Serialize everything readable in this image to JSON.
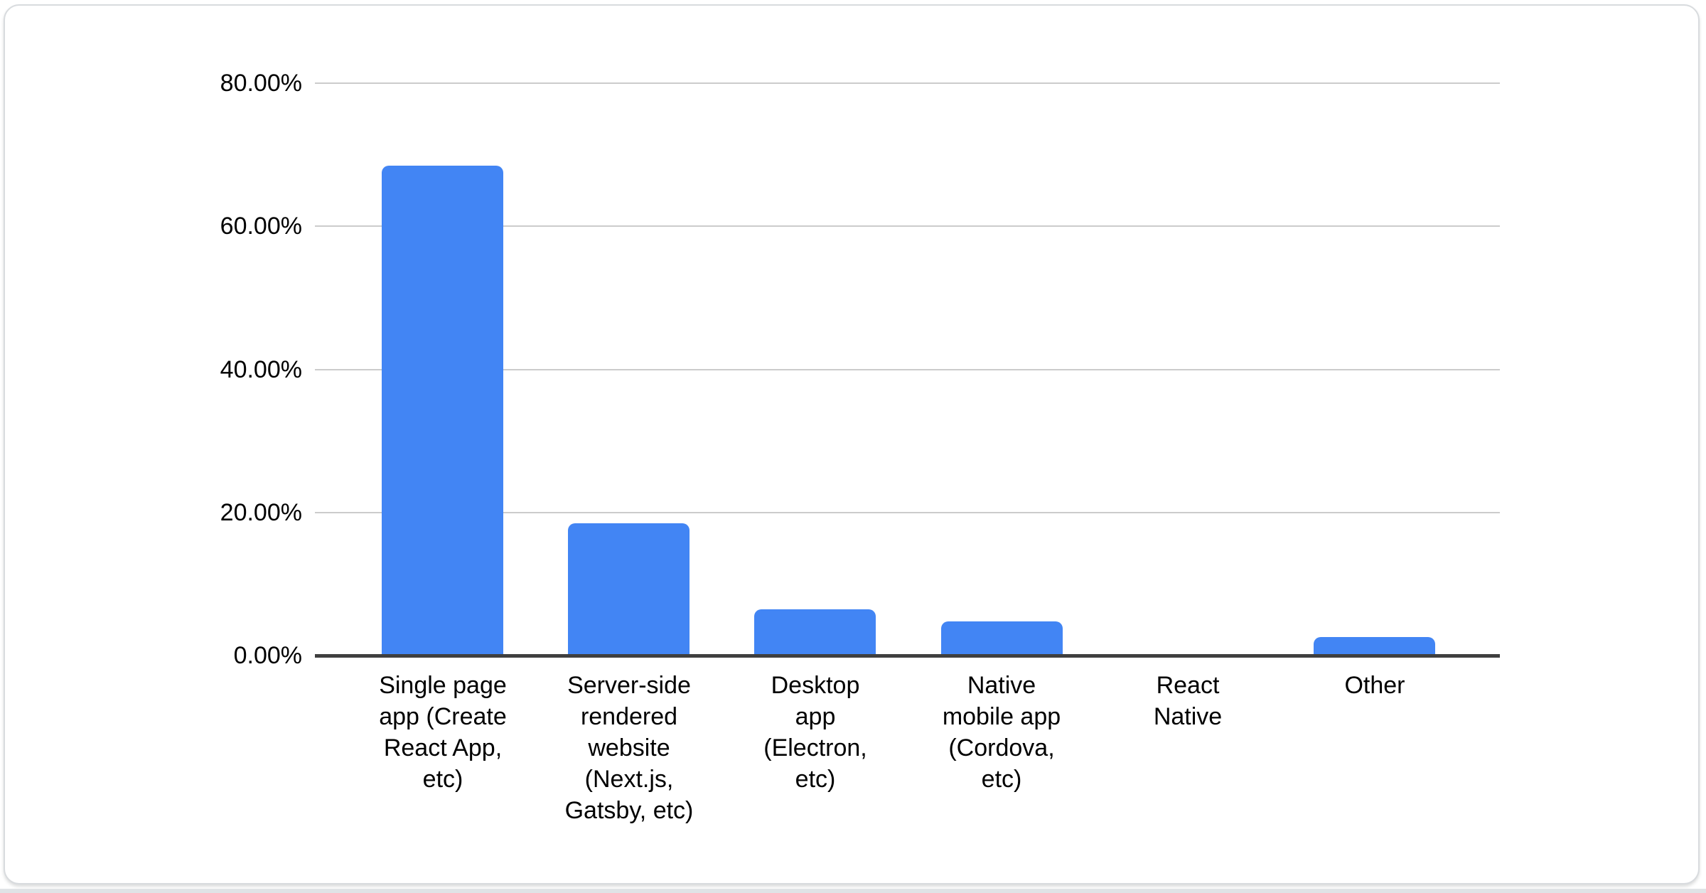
{
  "chart_data": {
    "type": "bar",
    "title": "",
    "categories": [
      "Single page app (Create React App, etc)",
      "Server-side rendered website (Next.js, Gatsby, etc)",
      "Desktop app (Electron, etc)",
      "Native mobile app (Cordova, etc)",
      "React Native",
      "Other"
    ],
    "category_slugs": [
      "single-page-app",
      "server-side-rendered-website",
      "desktop-app",
      "native-mobile-app",
      "react-native",
      "other"
    ],
    "values": [
      68.3,
      18.3,
      6.3,
      4.6,
      0,
      2.4
    ],
    "unit": "%",
    "ylim": [
      0,
      80
    ],
    "yticks": [
      {
        "value": 80,
        "label": "80.00%"
      },
      {
        "value": 60,
        "label": "60.00%"
      },
      {
        "value": 40,
        "label": "40.00%"
      },
      {
        "value": 20,
        "label": "20.00%"
      },
      {
        "value": 0,
        "label": "0.00%"
      }
    ],
    "grid": true,
    "legend": "none",
    "xlabel": "",
    "ylabel": "",
    "colors": {
      "bar": "#4285f4",
      "gridline": "#cccccc",
      "axis": "#3f3f3f",
      "text": "#000000",
      "card_border": "#d8dbde",
      "page_edge": "#e0e3e6"
    }
  }
}
